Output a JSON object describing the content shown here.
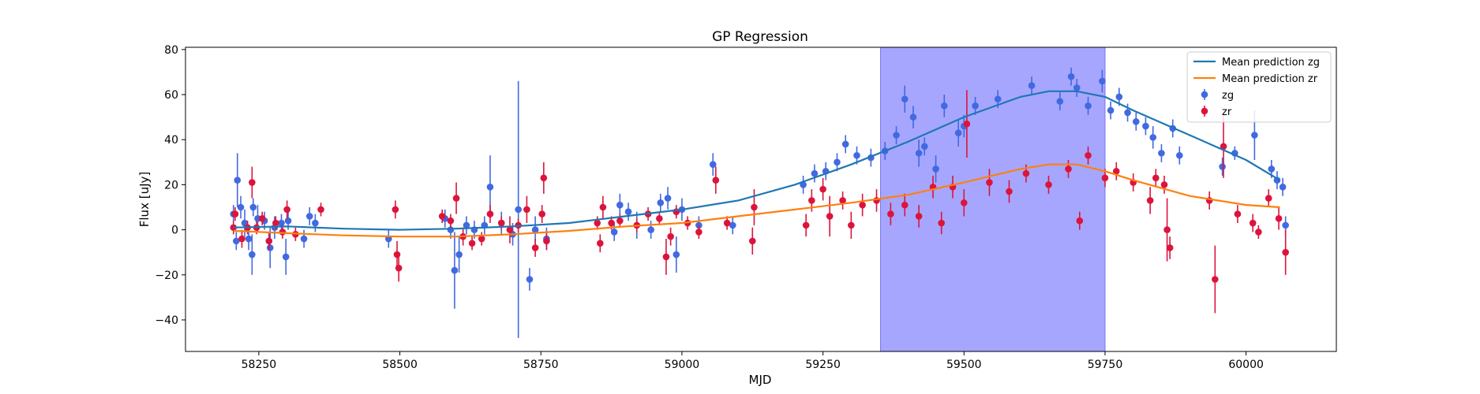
{
  "chart_data": {
    "type": "scatter",
    "title": "GP Regression",
    "xlabel": "MJD",
    "ylabel": "Flux [uJy]",
    "xlim": [
      58120,
      60160
    ],
    "ylim": [
      -54,
      81
    ],
    "xticks": [
      58250,
      58500,
      58750,
      59000,
      59250,
      59500,
      59750,
      60000
    ],
    "yticks": [
      -40,
      -20,
      0,
      20,
      40,
      60,
      80
    ],
    "grid": false,
    "legend_position": "top-right",
    "highlight_span": {
      "x0": 59352,
      "x1": 59750,
      "color": "#a6a6ff"
    },
    "series": [
      {
        "name": "Mean prediction zg",
        "kind": "line",
        "color": "#1f77b4",
        "x": [
          58205,
          58300,
          58400,
          58500,
          58600,
          58700,
          58800,
          58900,
          59000,
          59100,
          59200,
          59300,
          59400,
          59500,
          59600,
          59650,
          59700,
          59750,
          59800,
          59900,
          60000,
          60060
        ],
        "y": [
          1,
          1.5,
          0.5,
          0,
          0.5,
          1.5,
          3,
          6,
          9,
          13,
          20,
          29,
          39,
          50,
          59,
          61.5,
          61.5,
          59,
          53,
          42,
          31,
          22
        ]
      },
      {
        "name": "Mean prediction zr",
        "kind": "line",
        "color": "#ff7f0e",
        "x": [
          58205,
          58300,
          58400,
          58500,
          58600,
          58700,
          58800,
          58900,
          59000,
          59100,
          59200,
          59300,
          59400,
          59500,
          59600,
          59650,
          59700,
          59750,
          59800,
          59900,
          60000,
          60060
        ],
        "y": [
          -0.5,
          -1.5,
          -2.5,
          -3,
          -3,
          -2,
          -0.5,
          1.5,
          3,
          6,
          9,
          12,
          15.5,
          21,
          27,
          29,
          29,
          26,
          22,
          15,
          11,
          10
        ]
      },
      {
        "name": "zg",
        "kind": "errorbar",
        "color": "#4169e1",
        "points": [
          [
            58205,
            7,
            4
          ],
          [
            58210,
            -5,
            4
          ],
          [
            58212,
            22,
            12
          ],
          [
            58218,
            10,
            5
          ],
          [
            58225,
            3,
            6
          ],
          [
            58232,
            -4,
            5
          ],
          [
            58238,
            -11,
            9
          ],
          [
            58240,
            10,
            4
          ],
          [
            58248,
            5,
            6
          ],
          [
            58260,
            4,
            4
          ],
          [
            58270,
            -8,
            9
          ],
          [
            58278,
            1,
            5
          ],
          [
            58290,
            3,
            4
          ],
          [
            58298,
            -12,
            8
          ],
          [
            58302,
            4,
            4
          ],
          [
            58330,
            -4,
            4
          ],
          [
            58340,
            6,
            4
          ],
          [
            58350,
            3,
            4
          ],
          [
            58480,
            -4,
            4
          ],
          [
            58580,
            5,
            4
          ],
          [
            58590,
            0,
            4
          ],
          [
            58597,
            -18,
            17
          ],
          [
            58605,
            -11,
            8
          ],
          [
            58618,
            2,
            4
          ],
          [
            58632,
            0,
            4
          ],
          [
            58650,
            2,
            4
          ],
          [
            58660,
            19,
            14
          ],
          [
            58680,
            3,
            5
          ],
          [
            58700,
            -2,
            5
          ],
          [
            58710,
            9,
            57
          ],
          [
            58730,
            -22,
            5
          ],
          [
            58740,
            0,
            6
          ],
          [
            58760,
            -4,
            5
          ],
          [
            58880,
            -1,
            4
          ],
          [
            58890,
            11,
            5
          ],
          [
            58905,
            8,
            4
          ],
          [
            58920,
            2,
            6
          ],
          [
            58945,
            0,
            4
          ],
          [
            58962,
            12,
            4
          ],
          [
            58975,
            14,
            5
          ],
          [
            58990,
            -11,
            8
          ],
          [
            59000,
            9,
            5
          ],
          [
            59030,
            2,
            4
          ],
          [
            59055,
            29,
            5
          ],
          [
            59090,
            2,
            4
          ],
          [
            59215,
            20,
            4
          ],
          [
            59235,
            25,
            4
          ],
          [
            59255,
            26,
            4
          ],
          [
            59275,
            30,
            4
          ],
          [
            59290,
            38,
            4
          ],
          [
            59310,
            33,
            4
          ],
          [
            59335,
            32,
            4
          ],
          [
            59360,
            35,
            4
          ],
          [
            59380,
            42,
            4
          ],
          [
            59395,
            58,
            6
          ],
          [
            59410,
            50,
            5
          ],
          [
            59420,
            34,
            6
          ],
          [
            59430,
            37,
            4
          ],
          [
            59450,
            27,
            6
          ],
          [
            59465,
            55,
            5
          ],
          [
            59490,
            43,
            6
          ],
          [
            59500,
            46,
            5
          ],
          [
            59520,
            55,
            4
          ],
          [
            59560,
            58,
            4
          ],
          [
            59620,
            64,
            4
          ],
          [
            59670,
            57,
            4
          ],
          [
            59690,
            68,
            4
          ],
          [
            59700,
            63,
            4
          ],
          [
            59720,
            55,
            4
          ],
          [
            59745,
            66,
            5
          ],
          [
            59760,
            53,
            4
          ],
          [
            59775,
            59,
            4
          ],
          [
            59790,
            52,
            4
          ],
          [
            59805,
            48,
            4
          ],
          [
            59822,
            46,
            4
          ],
          [
            59835,
            41,
            5
          ],
          [
            59850,
            34,
            4
          ],
          [
            59870,
            45,
            4
          ],
          [
            59882,
            33,
            4
          ],
          [
            59958,
            28,
            4
          ],
          [
            59980,
            34,
            3
          ],
          [
            60015,
            42,
            11
          ],
          [
            60045,
            27,
            4
          ],
          [
            60055,
            22,
            4
          ],
          [
            60065,
            19,
            4
          ],
          [
            60070,
            2,
            4
          ]
        ]
      },
      {
        "name": "zr",
        "kind": "errorbar",
        "color": "#dc143c",
        "points": [
          [
            58205,
            1,
            3
          ],
          [
            58208,
            7,
            3
          ],
          [
            58220,
            -4,
            4
          ],
          [
            58230,
            1,
            3
          ],
          [
            58238,
            21,
            7
          ],
          [
            58246,
            1,
            3
          ],
          [
            58256,
            5,
            3
          ],
          [
            58268,
            -5,
            4
          ],
          [
            58280,
            3,
            3
          ],
          [
            58292,
            -1,
            3
          ],
          [
            58300,
            9,
            4
          ],
          [
            58315,
            -2,
            3
          ],
          [
            58360,
            9,
            3
          ],
          [
            58492,
            9,
            4
          ],
          [
            58495,
            -11,
            6
          ],
          [
            58498,
            -17,
            6
          ],
          [
            58575,
            6,
            3
          ],
          [
            58590,
            4,
            3
          ],
          [
            58600,
            14,
            7
          ],
          [
            58612,
            -3,
            4
          ],
          [
            58628,
            -6,
            3
          ],
          [
            58645,
            -4,
            3
          ],
          [
            58660,
            7,
            4
          ],
          [
            58680,
            3,
            3
          ],
          [
            58695,
            0,
            6
          ],
          [
            58710,
            2,
            3
          ],
          [
            58725,
            9,
            6
          ],
          [
            58740,
            -8,
            4
          ],
          [
            58752,
            7,
            4
          ],
          [
            58755,
            23,
            7
          ],
          [
            58760,
            -5,
            4
          ],
          [
            58850,
            3,
            3
          ],
          [
            58855,
            -6,
            4
          ],
          [
            58860,
            10,
            5
          ],
          [
            58875,
            3,
            3
          ],
          [
            58890,
            4,
            3
          ],
          [
            58920,
            2,
            3
          ],
          [
            58940,
            7,
            3
          ],
          [
            58960,
            5,
            3
          ],
          [
            58972,
            -12,
            8
          ],
          [
            58980,
            -3,
            4
          ],
          [
            58990,
            8,
            3
          ],
          [
            59010,
            3,
            3
          ],
          [
            59030,
            -1,
            3
          ],
          [
            59060,
            22,
            6
          ],
          [
            59080,
            3,
            3
          ],
          [
            59125,
            -5,
            6
          ],
          [
            59128,
            10,
            8
          ],
          [
            59220,
            2,
            5
          ],
          [
            59230,
            13,
            5
          ],
          [
            59250,
            18,
            5
          ],
          [
            59262,
            6,
            9
          ],
          [
            59285,
            13,
            4
          ],
          [
            59300,
            2,
            6
          ],
          [
            59320,
            11,
            5
          ],
          [
            59345,
            13,
            5
          ],
          [
            59370,
            7,
            5
          ],
          [
            59395,
            11,
            5
          ],
          [
            59420,
            6,
            5
          ],
          [
            59445,
            19,
            5
          ],
          [
            59460,
            3,
            5
          ],
          [
            59480,
            19,
            5
          ],
          [
            59500,
            12,
            6
          ],
          [
            59505,
            47,
            15
          ],
          [
            59545,
            21,
            6
          ],
          [
            59580,
            17,
            5
          ],
          [
            59610,
            25,
            4
          ],
          [
            59650,
            20,
            4
          ],
          [
            59685,
            27,
            4
          ],
          [
            59705,
            4,
            4
          ],
          [
            59720,
            33,
            4
          ],
          [
            59750,
            23,
            4
          ],
          [
            59770,
            26,
            4
          ],
          [
            59800,
            21,
            4
          ],
          [
            59830,
            13,
            6
          ],
          [
            59840,
            23,
            4
          ],
          [
            59855,
            20,
            4
          ],
          [
            59860,
            0,
            14
          ],
          [
            59865,
            -8,
            5
          ],
          [
            59935,
            13,
            4
          ],
          [
            59945,
            -22,
            15
          ],
          [
            59960,
            37,
            14
          ],
          [
            59985,
            7,
            4
          ],
          [
            60012,
            3,
            4
          ],
          [
            60022,
            -1,
            3
          ],
          [
            60040,
            14,
            4
          ],
          [
            60058,
            5,
            5
          ],
          [
            60070,
            -10,
            10
          ]
        ]
      }
    ]
  }
}
